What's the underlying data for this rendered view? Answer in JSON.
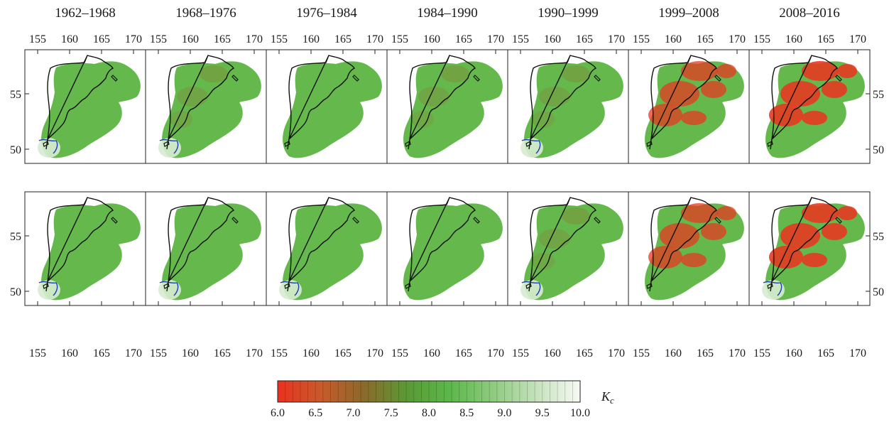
{
  "periods": [
    "1962–1968",
    "1968–1976",
    "1976–1984",
    "1984–1990",
    "1990–1999",
    "1999–2008",
    "2008–2016"
  ],
  "x_ticks": [
    "155",
    "160",
    "165",
    "170"
  ],
  "y_ticks": [
    "55",
    "50"
  ],
  "colorbar": {
    "ticks": [
      "6.0",
      "6.5",
      "7.0",
      "7.5",
      "8.0",
      "8.5",
      "9.0",
      "9.5",
      "10.0"
    ],
    "label": "K",
    "label_sub": "c",
    "min": 6.0,
    "max": 10.0,
    "stops": [
      "#e8321f",
      "#c95a2a",
      "#8a6a2a",
      "#5a9a35",
      "#5cb84a",
      "#8fcb80",
      "#c6e2bd",
      "#f6faf4"
    ]
  },
  "map_colors": {
    "base_green": "#64b84c",
    "red_high": "#e53a22",
    "contour": "#1a3fb0",
    "coastline": "#111111"
  }
}
